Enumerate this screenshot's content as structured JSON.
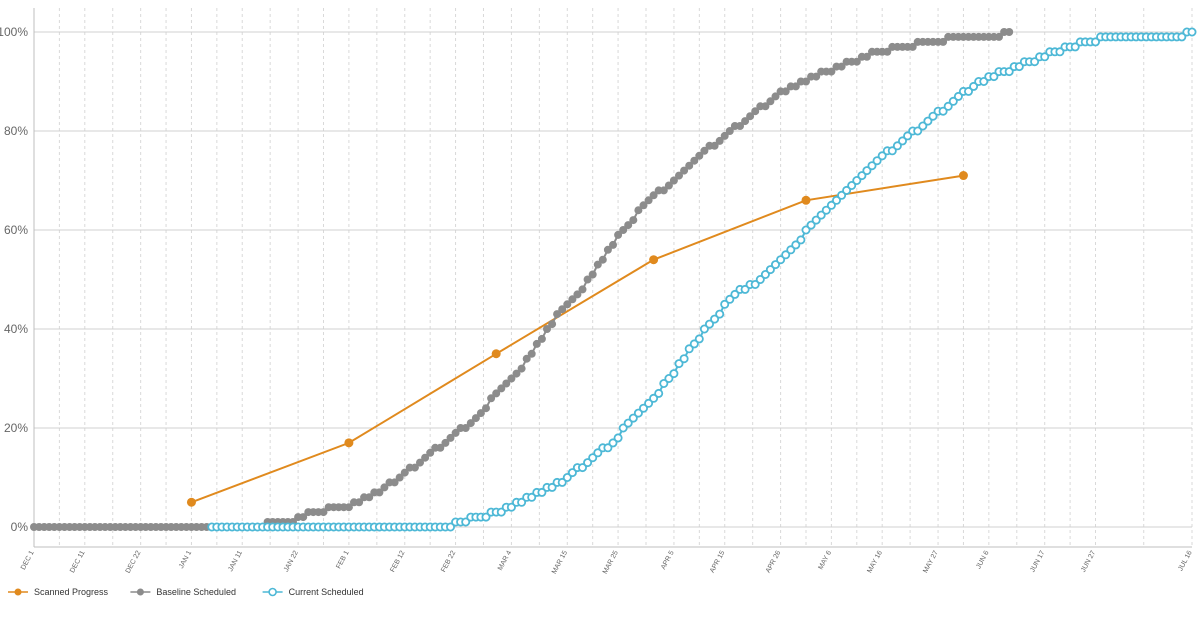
{
  "chart_data": {
    "type": "line",
    "title": "",
    "xlabel": "",
    "ylabel": "",
    "x_axis": {
      "type": "date",
      "range": [
        "2023-12-01",
        "2024-07-16"
      ],
      "tick_labels": [
        "DEC 1",
        "DEC 11",
        "DEC 22",
        "JAN 1",
        "JAN 11",
        "JAN 22",
        "FEB 1",
        "FEB 12",
        "FEB 22",
        "MAR 4",
        "MAR 15",
        "MAR 25",
        "APR 5",
        "APR 15",
        "APR 26",
        "MAY 6",
        "MAY 16",
        "MAY 27",
        "JUN 6",
        "JUN 17",
        "JUN 27",
        "JUL 16"
      ],
      "tick_dates": [
        "2023-12-01",
        "2023-12-11",
        "2023-12-22",
        "2024-01-01",
        "2024-01-11",
        "2024-01-22",
        "2024-02-01",
        "2024-02-12",
        "2024-02-22",
        "2024-03-04",
        "2024-03-15",
        "2024-03-25",
        "2024-04-05",
        "2024-04-15",
        "2024-04-26",
        "2024-05-06",
        "2024-05-16",
        "2024-05-27",
        "2024-06-06",
        "2024-06-17",
        "2024-06-27",
        "2024-07-16"
      ]
    },
    "y_axis": {
      "range": [
        0,
        100
      ],
      "ticks": [
        0,
        20,
        40,
        60,
        80,
        100
      ],
      "tick_labels": [
        "0%",
        "20%",
        "40%",
        "60%",
        "80%",
        "100%"
      ]
    },
    "grid": true,
    "legend_position": "bottom-left",
    "series": [
      {
        "name": "Scanned Progress",
        "color": "#e08a1e",
        "marker": "filled-circle",
        "points": [
          [
            "2024-01-01",
            5
          ],
          [
            "2024-02-01",
            17
          ],
          [
            "2024-03-01",
            35
          ],
          [
            "2024-04-01",
            54
          ],
          [
            "2024-05-01",
            66
          ],
          [
            "2024-06-01",
            71
          ]
        ]
      },
      {
        "name": "Baseline Scheduled",
        "color": "#8c8c8c",
        "marker": "filled-circle",
        "points": [
          [
            "2023-12-01",
            0
          ],
          [
            "2024-01-15",
            0
          ],
          [
            "2024-01-16",
            1
          ],
          [
            "2024-01-21",
            1
          ],
          [
            "2024-01-25",
            3
          ],
          [
            "2024-01-31",
            4
          ],
          [
            "2024-02-05",
            6
          ],
          [
            "2024-02-11",
            10
          ],
          [
            "2024-02-16",
            14
          ],
          [
            "2024-02-21",
            18
          ],
          [
            "2024-02-26",
            22
          ],
          [
            "2024-03-02",
            28
          ],
          [
            "2024-03-06",
            32
          ],
          [
            "2024-03-10",
            38
          ],
          [
            "2024-03-14",
            44
          ],
          [
            "2024-03-18",
            48
          ],
          [
            "2024-03-22",
            54
          ],
          [
            "2024-03-26",
            60
          ],
          [
            "2024-03-31",
            66
          ],
          [
            "2024-04-05",
            70
          ],
          [
            "2024-04-10",
            75
          ],
          [
            "2024-04-15",
            79
          ],
          [
            "2024-04-20",
            83
          ],
          [
            "2024-04-25",
            87
          ],
          [
            "2024-04-30",
            90
          ],
          [
            "2024-05-05",
            92
          ],
          [
            "2024-05-10",
            94
          ],
          [
            "2024-05-15",
            96
          ],
          [
            "2024-05-20",
            97
          ],
          [
            "2024-05-25",
            98
          ],
          [
            "2024-06-01",
            99
          ],
          [
            "2024-06-08",
            99
          ],
          [
            "2024-06-10",
            100
          ]
        ]
      },
      {
        "name": "Current Scheduled",
        "color": "#4db8d6",
        "marker": "hollow-circle",
        "points": [
          [
            "2024-01-05",
            0
          ],
          [
            "2024-02-21",
            0
          ],
          [
            "2024-02-22",
            1
          ],
          [
            "2024-02-27",
            2
          ],
          [
            "2024-03-01",
            3
          ],
          [
            "2024-03-06",
            5
          ],
          [
            "2024-03-10",
            7
          ],
          [
            "2024-03-15",
            10
          ],
          [
            "2024-03-20",
            14
          ],
          [
            "2024-03-24",
            17
          ],
          [
            "2024-03-28",
            22
          ],
          [
            "2024-04-01",
            26
          ],
          [
            "2024-04-05",
            31
          ],
          [
            "2024-04-09",
            37
          ],
          [
            "2024-04-13",
            42
          ],
          [
            "2024-04-17",
            47
          ],
          [
            "2024-04-21",
            49
          ],
          [
            "2024-04-25",
            53
          ],
          [
            "2024-04-29",
            57
          ],
          [
            "2024-05-03",
            62
          ],
          [
            "2024-05-07",
            66
          ],
          [
            "2024-05-11",
            70
          ],
          [
            "2024-05-15",
            74
          ],
          [
            "2024-05-20",
            78
          ],
          [
            "2024-05-25",
            82
          ],
          [
            "2024-05-30",
            86
          ],
          [
            "2024-06-04",
            90
          ],
          [
            "2024-06-09",
            92
          ],
          [
            "2024-06-14",
            94
          ],
          [
            "2024-06-19",
            96
          ],
          [
            "2024-06-25",
            98
          ],
          [
            "2024-07-01",
            99
          ],
          [
            "2024-07-14",
            99
          ],
          [
            "2024-07-16",
            100
          ]
        ]
      }
    ]
  }
}
